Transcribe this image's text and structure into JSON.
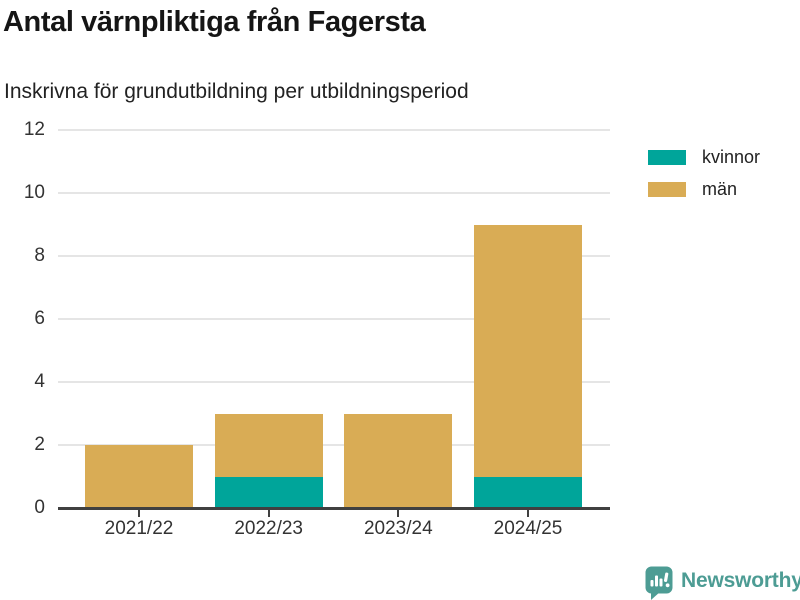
{
  "title": "Antal värnpliktiga från Fagersta",
  "subtitle": "Inskrivna för grundutbildning per utbildningsperiod",
  "chart_data": {
    "type": "bar",
    "stacked": true,
    "title": "Antal värnpliktiga från Fagersta",
    "subtitle": "Inskrivna för grundutbildning per utbildningsperiod",
    "categories": [
      "2021/22",
      "2022/23",
      "2023/24",
      "2024/25"
    ],
    "series": [
      {
        "name": "kvinnor",
        "color": "#00a59a",
        "values": [
          0,
          1,
          0,
          1
        ]
      },
      {
        "name": "män",
        "color": "#d9ac55",
        "values": [
          2,
          2,
          3,
          8
        ]
      }
    ],
    "xlabel": "",
    "ylabel": "",
    "ylim": [
      0,
      12
    ],
    "yticks": [
      0,
      2,
      4,
      6,
      8,
      10,
      12
    ],
    "grid": true,
    "legend_position": "top-right"
  },
  "legend": {
    "items": [
      {
        "label": "kvinnor",
        "color": "#00a59a"
      },
      {
        "label": "män",
        "color": "#d9ac55"
      }
    ]
  },
  "branding": {
    "text": "Newsworthy",
    "color": "#4d9c94",
    "icon": "newsworthy-chart-bubble-icon"
  },
  "colors": {
    "bar_kvinnor": "#00a59a",
    "bar_man": "#d9ac55",
    "gridline": "#e5e5e5",
    "axis": "#404040",
    "title_text": "#151515",
    "tick_text": "#333333",
    "brand": "#4d9c94"
  }
}
